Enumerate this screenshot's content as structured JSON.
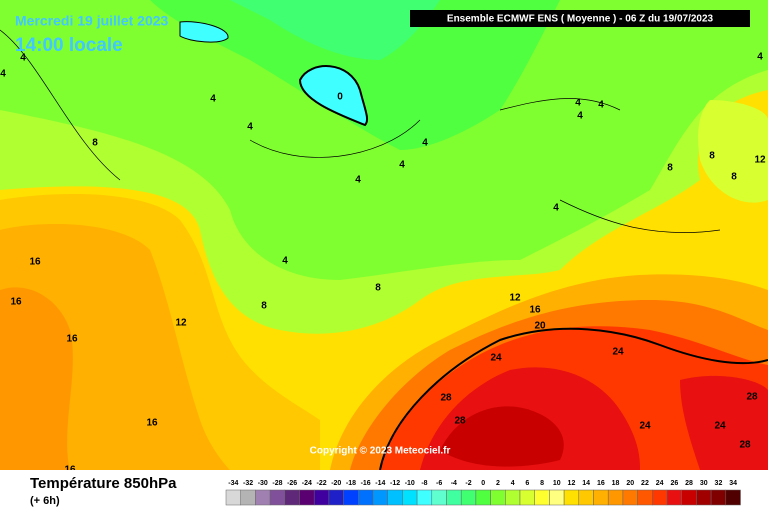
{
  "header": {
    "date": "Mercredi 19 juillet 2023",
    "time": "14:00 locale",
    "model": "Ensemble ECMWF ENS  ( Moyenne )  -  06 Z du 19/07/2023",
    "copyright": "Copyright © 2023 Meteociel.fr"
  },
  "footer": {
    "title": "Température 850hPa",
    "lead": "(+ 6h)"
  },
  "contour_labels": [
    "4",
    "4",
    "8",
    "4",
    "4",
    "0",
    "4",
    "4",
    "4",
    "4",
    "8",
    "8",
    "16",
    "16",
    "16",
    "12",
    "16",
    "16",
    "12",
    "16",
    "20",
    "24",
    "24",
    "28",
    "28",
    "4",
    "4",
    "4",
    "4",
    "8",
    "8",
    "8",
    "12",
    "28",
    "24",
    "24",
    "28",
    "4"
  ],
  "scale": {
    "labels": [
      -34,
      -32,
      -30,
      -28,
      -26,
      -24,
      -22,
      -20,
      -18,
      -16,
      -14,
      -12,
      -10,
      -8,
      -6,
      -4,
      -2,
      0,
      2,
      4,
      6,
      8,
      10,
      12,
      14,
      16,
      18,
      20,
      22,
      24,
      26,
      28,
      30,
      32,
      34
    ],
    "colors": [
      "#d8d8d8",
      "#b4b4b4",
      "#a080b0",
      "#80509a",
      "#602878",
      "#5a0070",
      "#4000a0",
      "#2020c8",
      "#0040ff",
      "#0070ff",
      "#0098ff",
      "#00c0ff",
      "#00e0ff",
      "#40ffff",
      "#60ffd0",
      "#40ffa0",
      "#40ff70",
      "#50ff40",
      "#80ff30",
      "#b0ff30",
      "#d8ff30",
      "#ffff30",
      "#ffff80",
      "#ffe000",
      "#ffc800",
      "#ffb000",
      "#ff9800",
      "#ff7800",
      "#ff5800",
      "#ff3800",
      "#e81010",
      "#c80000",
      "#a00000",
      "#800000",
      "#500000"
    ]
  }
}
